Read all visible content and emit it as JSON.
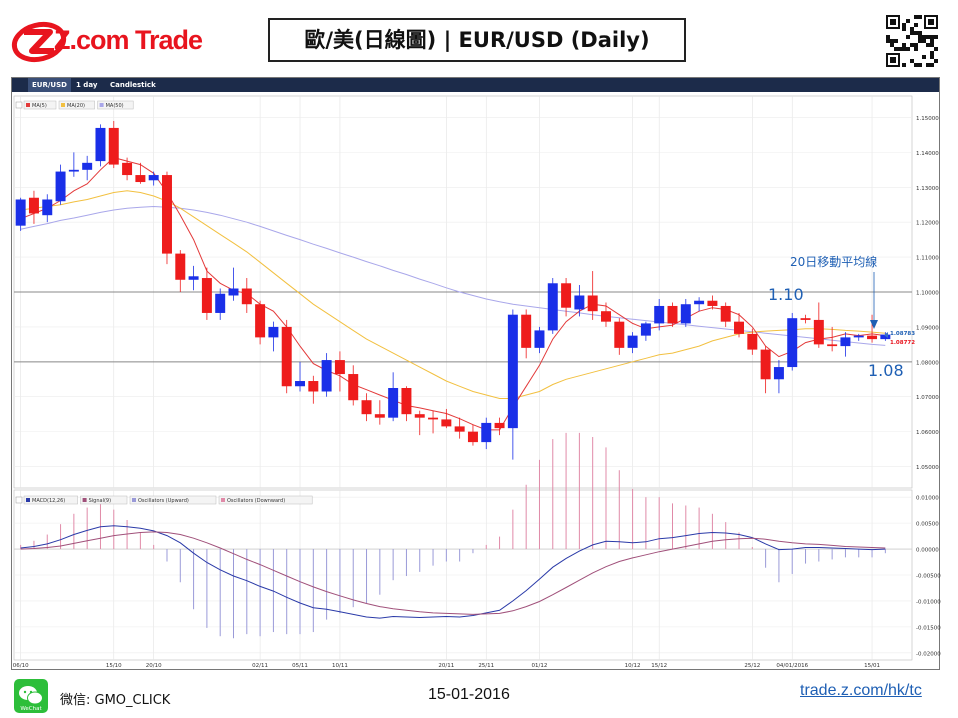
{
  "brand": {
    "name": "Z.com Trade",
    "color": "#e8141e"
  },
  "title": "歐/美(日線圖) | EUR/USD (Daily)",
  "toolbar": {
    "symbol": "EUR/USD",
    "period": "1 day",
    "chart_style": "Candlestick"
  },
  "legend_main": [
    "MA(5)",
    "MA(20)",
    "MA(50)"
  ],
  "legend_osc": [
    "MACD(12,26)",
    "Signal(9)",
    "Oscillators (Upward)",
    "Oscillators (Downward)"
  ],
  "annotations": {
    "ma_label": "20日移動平均線",
    "level_high": "1.10",
    "level_low": "1.08"
  },
  "price_tags": {
    "upper": "1.08783",
    "lower": "1.08772"
  },
  "footer": {
    "wechat_id": "微信: GMO_CLICK",
    "wechat_badge": "WeChat",
    "date": "15-01-2016",
    "url": "trade.z.com/hk/tc"
  },
  "colors": {
    "up": "#1a2fe8",
    "down": "#ee1c1c",
    "ma5": "#e33a3a",
    "ma20": "#f2c040",
    "ma50": "#a9a7ea",
    "macd": "#2a3aa8",
    "signal": "#a0507a",
    "hline": "#888888"
  },
  "chart_data": {
    "type": "candlestick",
    "symbol": "EUR/USD",
    "period": "Daily",
    "ylim": [
      1.045,
      1.155
    ],
    "y_ticks": [
      "1.15000",
      "1.14000",
      "1.13000",
      "1.12000",
      "1.11000",
      "1.10000",
      "1.09000",
      "1.08000",
      "1.07000",
      "1.06000",
      "1.05000"
    ],
    "x_labels": [
      "06/10",
      "15/10",
      "20/10",
      "02/11",
      "05/11",
      "10/11",
      "20/11",
      "25/11",
      "01/12",
      "10/12",
      "15/12",
      "25/12",
      "04/01/2016",
      "15/01"
    ],
    "horizontal_levels": [
      1.1,
      1.08
    ],
    "candles": [
      {
        "o": 1.119,
        "h": 1.127,
        "l": 1.1175,
        "c": 1.1265
      },
      {
        "o": 1.127,
        "h": 1.129,
        "l": 1.1195,
        "c": 1.1225
      },
      {
        "o": 1.122,
        "h": 1.128,
        "l": 1.12,
        "c": 1.1265
      },
      {
        "o": 1.126,
        "h": 1.1365,
        "l": 1.125,
        "c": 1.1345
      },
      {
        "o": 1.1345,
        "h": 1.14,
        "l": 1.133,
        "c": 1.135
      },
      {
        "o": 1.135,
        "h": 1.139,
        "l": 1.132,
        "c": 1.137
      },
      {
        "o": 1.1375,
        "h": 1.148,
        "l": 1.136,
        "c": 1.147
      },
      {
        "o": 1.147,
        "h": 1.149,
        "l": 1.1355,
        "c": 1.1365
      },
      {
        "o": 1.137,
        "h": 1.1385,
        "l": 1.132,
        "c": 1.1335
      },
      {
        "o": 1.1335,
        "h": 1.137,
        "l": 1.131,
        "c": 1.1315
      },
      {
        "o": 1.132,
        "h": 1.1345,
        "l": 1.1305,
        "c": 1.1335
      },
      {
        "o": 1.1335,
        "h": 1.1345,
        "l": 1.108,
        "c": 1.111
      },
      {
        "o": 1.111,
        "h": 1.112,
        "l": 1.1,
        "c": 1.1035
      },
      {
        "o": 1.1035,
        "h": 1.1075,
        "l": 1.1005,
        "c": 1.1045
      },
      {
        "o": 1.104,
        "h": 1.107,
        "l": 1.092,
        "c": 1.094
      },
      {
        "o": 1.094,
        "h": 1.101,
        "l": 1.092,
        "c": 1.0995
      },
      {
        "o": 1.099,
        "h": 1.107,
        "l": 1.0975,
        "c": 1.101
      },
      {
        "o": 1.101,
        "h": 1.104,
        "l": 1.094,
        "c": 1.0965
      },
      {
        "o": 1.0965,
        "h": 1.0975,
        "l": 1.085,
        "c": 1.087
      },
      {
        "o": 1.087,
        "h": 1.0915,
        "l": 1.083,
        "c": 1.09
      },
      {
        "o": 1.09,
        "h": 1.092,
        "l": 1.071,
        "c": 1.073
      },
      {
        "o": 1.073,
        "h": 1.08,
        "l": 1.0715,
        "c": 1.0745
      },
      {
        "o": 1.0745,
        "h": 1.076,
        "l": 1.068,
        "c": 1.0715
      },
      {
        "o": 1.0715,
        "h": 1.0825,
        "l": 1.07,
        "c": 1.0805
      },
      {
        "o": 1.0805,
        "h": 1.083,
        "l": 1.0715,
        "c": 1.0765
      },
      {
        "o": 1.0765,
        "h": 1.079,
        "l": 1.0675,
        "c": 1.069
      },
      {
        "o": 1.069,
        "h": 1.071,
        "l": 1.063,
        "c": 1.065
      },
      {
        "o": 1.065,
        "h": 1.069,
        "l": 1.062,
        "c": 1.064
      },
      {
        "o": 1.064,
        "h": 1.077,
        "l": 1.063,
        "c": 1.0725
      },
      {
        "o": 1.0725,
        "h": 1.073,
        "l": 1.063,
        "c": 1.065
      },
      {
        "o": 1.065,
        "h": 1.066,
        "l": 1.059,
        "c": 1.064
      },
      {
        "o": 1.064,
        "h": 1.066,
        "l": 1.0595,
        "c": 1.0635
      },
      {
        "o": 1.0635,
        "h": 1.0665,
        "l": 1.061,
        "c": 1.0615
      },
      {
        "o": 1.0615,
        "h": 1.064,
        "l": 1.058,
        "c": 1.06
      },
      {
        "o": 1.06,
        "h": 1.062,
        "l": 1.056,
        "c": 1.057
      },
      {
        "o": 1.057,
        "h": 1.064,
        "l": 1.055,
        "c": 1.0625
      },
      {
        "o": 1.0625,
        "h": 1.064,
        "l": 1.059,
        "c": 1.061
      },
      {
        "o": 1.061,
        "h": 1.095,
        "l": 1.052,
        "c": 1.0935
      },
      {
        "o": 1.0935,
        "h": 1.095,
        "l": 1.081,
        "c": 1.084
      },
      {
        "o": 1.084,
        "h": 1.09,
        "l": 1.0825,
        "c": 1.089
      },
      {
        "o": 1.089,
        "h": 1.104,
        "l": 1.088,
        "c": 1.1025
      },
      {
        "o": 1.1025,
        "h": 1.104,
        "l": 1.093,
        "c": 1.0955
      },
      {
        "o": 1.095,
        "h": 1.102,
        "l": 1.093,
        "c": 1.099
      },
      {
        "o": 1.099,
        "h": 1.106,
        "l": 1.092,
        "c": 1.0945
      },
      {
        "o": 1.0945,
        "h": 1.097,
        "l": 1.09,
        "c": 1.0915
      },
      {
        "o": 1.0915,
        "h": 1.0925,
        "l": 1.082,
        "c": 1.084
      },
      {
        "o": 1.084,
        "h": 1.0885,
        "l": 1.0825,
        "c": 1.0875
      },
      {
        "o": 1.0875,
        "h": 1.0915,
        "l": 1.086,
        "c": 1.091
      },
      {
        "o": 1.091,
        "h": 1.098,
        "l": 1.089,
        "c": 1.096
      },
      {
        "o": 1.096,
        "h": 1.097,
        "l": 1.09,
        "c": 1.091
      },
      {
        "o": 1.091,
        "h": 1.098,
        "l": 1.09,
        "c": 1.0965
      },
      {
        "o": 1.0965,
        "h": 1.0985,
        "l": 1.0945,
        "c": 1.0975
      },
      {
        "o": 1.0975,
        "h": 1.099,
        "l": 1.095,
        "c": 1.096
      },
      {
        "o": 1.096,
        "h": 1.097,
        "l": 1.09,
        "c": 1.0915
      },
      {
        "o": 1.0915,
        "h": 1.094,
        "l": 1.087,
        "c": 1.088
      },
      {
        "o": 1.088,
        "h": 1.0895,
        "l": 1.082,
        "c": 1.0835
      },
      {
        "o": 1.0835,
        "h": 1.0845,
        "l": 1.071,
        "c": 1.075
      },
      {
        "o": 1.075,
        "h": 1.0805,
        "l": 1.071,
        "c": 1.0785
      },
      {
        "o": 1.0785,
        "h": 1.094,
        "l": 1.0775,
        "c": 1.0925
      },
      {
        "o": 1.0925,
        "h": 1.0935,
        "l": 1.091,
        "c": 1.092
      },
      {
        "o": 1.092,
        "h": 1.097,
        "l": 1.084,
        "c": 1.085
      },
      {
        "o": 1.085,
        "h": 1.09,
        "l": 1.083,
        "c": 1.0845
      },
      {
        "o": 1.0845,
        "h": 1.0885,
        "l": 1.0815,
        "c": 1.087
      },
      {
        "o": 1.087,
        "h": 1.088,
        "l": 1.086,
        "c": 1.0875
      },
      {
        "o": 1.0875,
        "h": 1.0935,
        "l": 1.0855,
        "c": 1.0865
      },
      {
        "o": 1.0865,
        "h": 1.0885,
        "l": 1.086,
        "c": 1.0878
      }
    ],
    "ma5": [
      1.121,
      1.1225,
      1.124,
      1.1262,
      1.129,
      1.131,
      1.135,
      1.1385,
      1.1375,
      1.1365,
      1.134,
      1.1285,
      1.122,
      1.115,
      1.106,
      1.1025,
      1.1005,
      1.0995,
      1.0965,
      1.0945,
      1.09,
      1.0845,
      1.0795,
      1.0775,
      1.076,
      1.0735,
      1.072,
      1.0705,
      1.069,
      1.0675,
      1.0668,
      1.066,
      1.0652,
      1.0637,
      1.062,
      1.0605,
      1.0605,
      1.067,
      1.073,
      1.079,
      1.0865,
      1.0915,
      1.0945,
      1.0965,
      1.096,
      1.0935,
      1.091,
      1.0895,
      1.09,
      1.0905,
      1.0925,
      1.0945,
      1.0955,
      1.095,
      1.0935,
      1.09,
      1.0845,
      1.0815,
      1.083,
      1.0855,
      1.0865,
      1.087,
      1.088,
      1.0875,
      1.088,
      1.0875
    ],
    "ma20": [
      1.1235,
      1.124,
      1.1245,
      1.125,
      1.1258,
      1.1265,
      1.1275,
      1.1285,
      1.129,
      1.1285,
      1.1275,
      1.126,
      1.124,
      1.1215,
      1.119,
      1.1165,
      1.114,
      1.1115,
      1.1085,
      1.1055,
      1.1025,
      1.0995,
      1.0965,
      1.094,
      1.0915,
      1.089,
      1.0865,
      1.0845,
      1.0825,
      1.0805,
      1.0785,
      1.0765,
      1.0745,
      1.073,
      1.0715,
      1.0705,
      1.0695,
      1.0695,
      1.0705,
      1.0715,
      1.0735,
      1.075,
      1.076,
      1.077,
      1.078,
      1.079,
      1.08,
      1.081,
      1.082,
      1.0825,
      1.0835,
      1.0845,
      1.086,
      1.087,
      1.088,
      1.0885,
      1.0888,
      1.089,
      1.0892,
      1.0895,
      1.0895,
      1.0893,
      1.089,
      1.0888,
      1.0885,
      1.0882
    ],
    "ma50": [
      1.118,
      1.1188,
      1.1196,
      1.1205,
      1.1212,
      1.122,
      1.1228,
      1.1235,
      1.124,
      1.1243,
      1.1245,
      1.1243,
      1.124,
      1.1235,
      1.1228,
      1.122,
      1.121,
      1.12,
      1.1188,
      1.1175,
      1.1162,
      1.115,
      1.1137,
      1.1125,
      1.1112,
      1.11,
      1.1087,
      1.1075,
      1.1062,
      1.105,
      1.1037,
      1.1025,
      1.1012,
      1.1,
      1.099,
      1.098,
      1.0972,
      1.0965,
      1.096,
      1.0955,
      1.095,
      1.0945,
      1.094,
      1.0935,
      1.093,
      1.0926,
      1.0922,
      1.0918,
      1.0914,
      1.091,
      1.0906,
      1.0902,
      1.0898,
      1.0894,
      1.089,
      1.0886,
      1.0882,
      1.0878,
      1.0874,
      1.087,
      1.0866,
      1.0862,
      1.0858,
      1.0854,
      1.085,
      1.0847
    ],
    "osc_ylim": [
      -0.021,
      0.011
    ],
    "osc_ticks": [
      "0.01000",
      "0.00500",
      "0.00000",
      "-0.00500",
      "-0.01000",
      "-0.01500",
      "-0.02000"
    ],
    "macd": [
      0.0002,
      0.0005,
      0.001,
      0.0018,
      0.0028,
      0.0036,
      0.0043,
      0.0045,
      0.0043,
      0.004,
      0.0035,
      0.0026,
      0.0012,
      -0.0008,
      -0.0026,
      -0.004,
      -0.0052,
      -0.0061,
      -0.0072,
      -0.0081,
      -0.0093,
      -0.0104,
      -0.0113,
      -0.0116,
      -0.0121,
      -0.0126,
      -0.0131,
      -0.0133,
      -0.013,
      -0.0131,
      -0.0132,
      -0.0131,
      -0.013,
      -0.0131,
      -0.0128,
      -0.0123,
      -0.0118,
      -0.01,
      -0.008,
      -0.0058,
      -0.0035,
      -0.0018,
      -0.0004,
      0.0008,
      0.0015,
      0.0014,
      0.0012,
      0.0014,
      0.002,
      0.0022,
      0.0026,
      0.003,
      0.0032,
      0.0031,
      0.0028,
      0.0022,
      0.001,
      -0.0001,
      0.0,
      0.0003,
      0.0003,
      0.0002,
      0.0001,
      0.0,
      -0.0001,
      0.0
    ],
    "signal": [
      0.0,
      0.0001,
      0.0003,
      0.0006,
      0.0011,
      0.0016,
      0.0021,
      0.0026,
      0.0029,
      0.0032,
      0.0033,
      0.0032,
      0.0028,
      0.0021,
      0.0012,
      0.0002,
      -0.0009,
      -0.002,
      -0.003,
      -0.0041,
      -0.0052,
      -0.0063,
      -0.0073,
      -0.0082,
      -0.009,
      -0.0098,
      -0.0105,
      -0.0111,
      -0.0115,
      -0.0118,
      -0.0121,
      -0.0123,
      -0.0124,
      -0.0125,
      -0.0126,
      -0.0125,
      -0.0124,
      -0.0119,
      -0.0111,
      -0.0101,
      -0.0088,
      -0.0074,
      -0.006,
      -0.0046,
      -0.0034,
      -0.0024,
      -0.0017,
      -0.0011,
      -0.0005,
      0.0,
      0.0005,
      0.001,
      0.0015,
      0.0018,
      0.002,
      0.0021,
      0.0019,
      0.0015,
      0.0012,
      0.001,
      0.0009,
      0.0007,
      0.0005,
      0.0004,
      0.0003,
      0.0002
    ],
    "histogram_scale": 4
  }
}
